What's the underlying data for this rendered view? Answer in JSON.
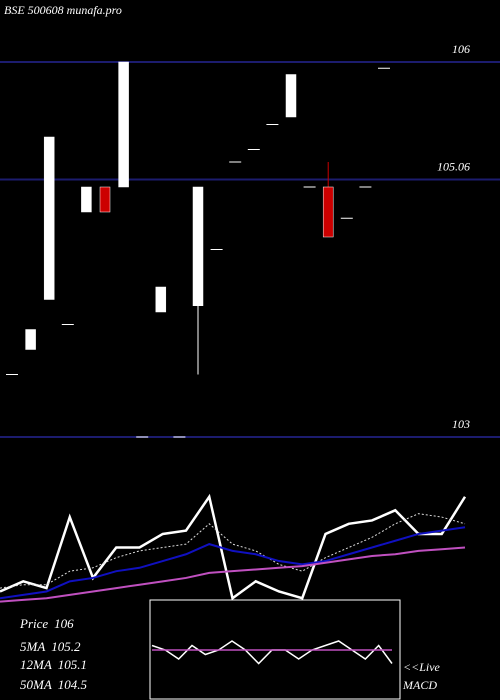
{
  "chart_data": [
    {
      "type": "candlestick",
      "title": "BSE 500608 munafa.pro",
      "open": [
        103.5,
        103.7,
        104.1,
        103.9,
        104.8,
        105.0,
        105.0,
        103.0,
        104.0,
        103.0,
        104.05,
        104.5,
        105.2,
        105.3,
        105.5,
        105.56,
        105.0,
        105.0,
        104.75,
        105.0,
        105.95
      ],
      "high": [
        103.5,
        103.86,
        105.4,
        103.9,
        105.0,
        105.0,
        106.0,
        103.0,
        104.2,
        103.0,
        105.0,
        104.5,
        105.2,
        105.3,
        105.5,
        105.9,
        105.0,
        105.2,
        104.75,
        105.0,
        105.95
      ],
      "low": [
        103.5,
        103.7,
        104.1,
        103.9,
        104.8,
        104.8,
        105.0,
        103.0,
        104.0,
        103.0,
        103.5,
        104.5,
        105.2,
        105.3,
        105.5,
        105.56,
        105.0,
        104.6,
        104.75,
        105.0,
        105.95
      ],
      "close": [
        103.5,
        103.86,
        105.4,
        103.9,
        105.0,
        104.8,
        106.0,
        103.0,
        104.2,
        103.0,
        105.0,
        104.5,
        105.2,
        105.3,
        105.5,
        105.9,
        105.0,
        104.6,
        104.75,
        105.0,
        105.95
      ],
      "up_color": "#ffffff",
      "down_color": "#cc0000",
      "ylim": [
        102.6,
        106.5
      ],
      "yticks": [
        106,
        105.06,
        103
      ],
      "grid": true
    },
    {
      "type": "line",
      "series": [
        {
          "name": "Price",
          "color": "#ffffff",
          "values": [
            103.2,
            103.5,
            103.3,
            105.4,
            103.6,
            104.5,
            104.5,
            104.9,
            105.0,
            106.0,
            103.0,
            103.5,
            103.2,
            103.0,
            104.9,
            105.2,
            105.3,
            105.6,
            104.9,
            104.9,
            106.0
          ]
        },
        {
          "name": "5MA",
          "color": "#dddddd",
          "values": [
            103.3,
            103.4,
            103.4,
            103.8,
            103.9,
            104.2,
            104.4,
            104.5,
            104.6,
            105.2,
            104.6,
            104.4,
            104.0,
            103.8,
            104.2,
            104.5,
            104.8,
            105.2,
            105.5,
            105.4,
            105.2
          ]
        },
        {
          "name": "12MA",
          "color": "#1010c0",
          "values": [
            103.0,
            103.1,
            103.2,
            103.5,
            103.6,
            103.8,
            103.9,
            104.1,
            104.3,
            104.6,
            104.4,
            104.3,
            104.1,
            104.0,
            104.1,
            104.3,
            104.5,
            104.7,
            104.9,
            105.0,
            105.1
          ]
        },
        {
          "name": "50MA",
          "color": "#c050c0",
          "values": [
            102.9,
            102.95,
            103.0,
            103.1,
            103.2,
            103.3,
            103.4,
            103.5,
            103.6,
            103.75,
            103.8,
            103.85,
            103.9,
            103.95,
            104.05,
            104.15,
            104.25,
            104.3,
            104.4,
            104.45,
            104.5
          ]
        }
      ],
      "legend_values": [
        106,
        105.2,
        105.1,
        104.5
      ],
      "ylim": [
        102.8,
        106.2
      ]
    },
    {
      "type": "macd",
      "label_top": "<<Live",
      "label_bottom": "MACD",
      "series": [
        {
          "color": "#ffffff",
          "values": [
            0.1,
            0.0,
            -0.2,
            0.1,
            -0.1,
            0.0,
            0.2,
            0.0,
            -0.3,
            0.0,
            0.0,
            -0.2,
            0.0,
            0.1,
            0.2,
            0.0,
            -0.2,
            0.1,
            -0.3
          ]
        },
        {
          "color": "#c050c0",
          "values": [
            0.0,
            0.0,
            0.0,
            0.0,
            0.0,
            0.0,
            0.0,
            0.0,
            0.0,
            0.0,
            0.0,
            0.0,
            0.0,
            0.0,
            0.0,
            0.0,
            0.0,
            0.0,
            0.0
          ]
        }
      ],
      "ylim": [
        -1,
        1
      ]
    }
  ]
}
